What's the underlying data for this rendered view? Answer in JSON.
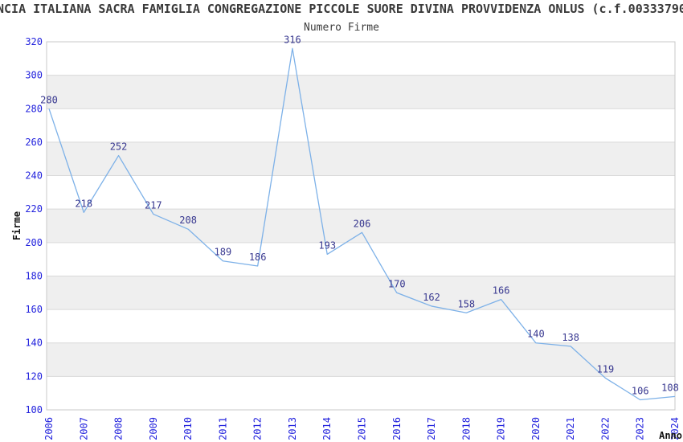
{
  "header": {
    "title": "NCIA ITALIANA SACRA FAMIGLIA CONGREGAZIONE PICCOLE SUORE DIVINA PROVVIDENZA ONLUS (c.f.00333790"
  },
  "chart_data": {
    "type": "line",
    "title": "Numero Firme",
    "xlabel": "Anno",
    "ylabel": "Firme",
    "x": [
      "2006",
      "2007",
      "2008",
      "2009",
      "2010",
      "2011",
      "2012",
      "2013",
      "2014",
      "2015",
      "2016",
      "2017",
      "2018",
      "2019",
      "2020",
      "2021",
      "2022",
      "2023",
      "2024"
    ],
    "series": [
      {
        "name": "Numero Firme",
        "values": [
          280,
          218,
          252,
          217,
          208,
          189,
          186,
          316,
          193,
          206,
          170,
          162,
          158,
          166,
          140,
          138,
          119,
          106,
          108
        ]
      }
    ],
    "ylim": [
      100,
      320
    ],
    "ytick_step": 20,
    "yticks": [
      100,
      120,
      140,
      160,
      180,
      200,
      220,
      240,
      260,
      280,
      300,
      320
    ],
    "grid": "horizontal",
    "alternating_bands": true,
    "legend": "none",
    "point_labels_visible": true,
    "colors": {
      "line": "#7db1e8",
      "band": "#efefef",
      "grid": "#d9d9d9",
      "border": "#c9c9c9",
      "tick_label": "#2222dd",
      "point_label": "#383890",
      "axis_title": "#111111",
      "title_text": "#3a3a3a"
    }
  }
}
